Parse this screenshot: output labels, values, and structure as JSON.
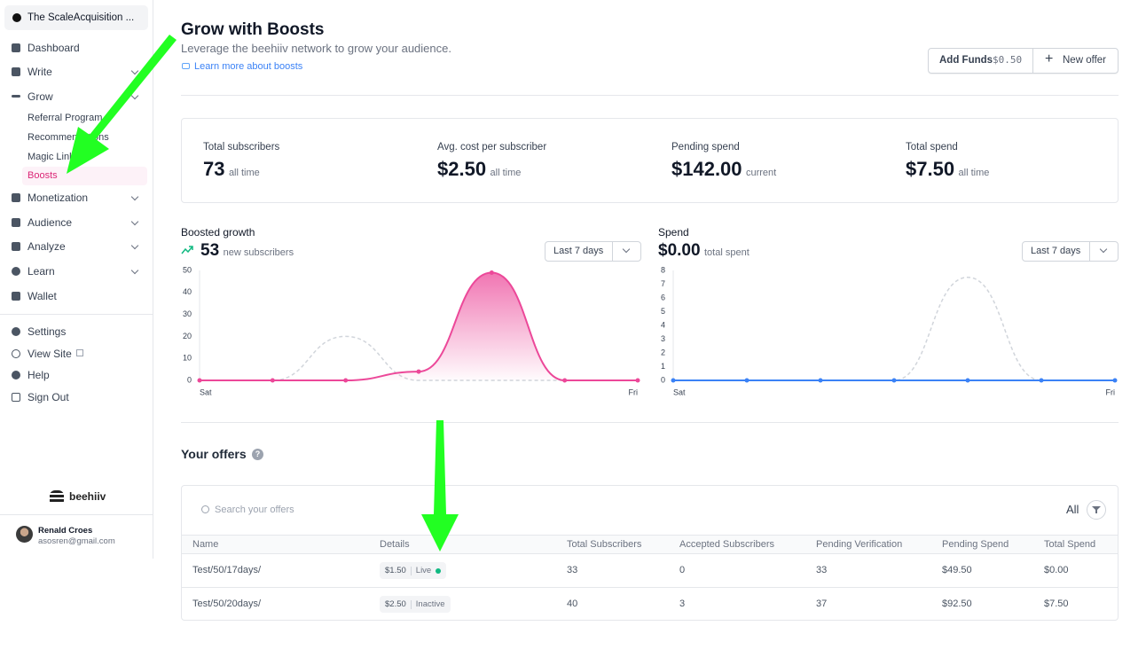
{
  "sidebar": {
    "workspace": "The ScaleAcquisition ...",
    "nav": [
      "Dashboard",
      "Write",
      "Grow"
    ],
    "grow_items": [
      "Referral Program",
      "Recommendations",
      "Magic Links",
      "Boosts"
    ],
    "nav2": [
      "Monetization",
      "Audience",
      "Analyze",
      "Learn",
      "Wallet"
    ],
    "footer_nav": [
      "Settings",
      "View Site",
      "Help",
      "Sign Out"
    ],
    "brand": "beehiiv",
    "user": {
      "name": "Renald Croes",
      "email": "asosren@gmail.com"
    }
  },
  "header": {
    "title": "Grow with Boosts",
    "subtitle": "Leverage the beehiiv network to grow your audience.",
    "link": "Learn more about boosts",
    "add_funds": "Add Funds",
    "funds": "$0.50",
    "new_offer": "New offer"
  },
  "stats": [
    {
      "label": "Total subscribers",
      "value": "73",
      "suffix": "all time"
    },
    {
      "label": "Avg. cost per subscriber",
      "value": "$2.50",
      "suffix": "all time"
    },
    {
      "label": "Pending spend",
      "value": "$142.00",
      "suffix": "current"
    },
    {
      "label": "Total spend",
      "value": "$7.50",
      "suffix": "all time"
    }
  ],
  "chart_data": [
    {
      "type": "line",
      "title": "Boosted growth",
      "headline_value": "53",
      "headline_suffix": "new subscribers",
      "range_select": "Last 7 days",
      "categories": [
        "Sat",
        null,
        null,
        null,
        null,
        null,
        "Fri"
      ],
      "ylim": [
        0,
        50
      ],
      "yticks": [
        0,
        10,
        20,
        30,
        40,
        50
      ],
      "series": [
        {
          "color": "#ec4899",
          "fill": true,
          "dots": true,
          "values": [
            0,
            0,
            0,
            4,
            49,
            0,
            0
          ]
        },
        {
          "color": "#d1d5db",
          "dashed": true,
          "values": [
            0,
            0,
            20,
            0,
            0,
            0,
            0
          ]
        }
      ]
    },
    {
      "type": "line",
      "title": "Spend",
      "headline_value": "$0.00",
      "headline_suffix": "total spent",
      "range_select": "Last 7 days",
      "categories": [
        "Sat",
        null,
        null,
        null,
        null,
        null,
        "Fri"
      ],
      "ylim": [
        0,
        8
      ],
      "yticks": [
        0,
        1,
        2,
        3,
        4,
        5,
        6,
        7,
        8
      ],
      "series": [
        {
          "color": "#3b82f6",
          "dots": true,
          "values": [
            0,
            0,
            0,
            0,
            0,
            0,
            0
          ]
        },
        {
          "color": "#d1d5db",
          "dashed": true,
          "values": [
            0,
            0,
            0,
            0,
            7.5,
            0,
            0
          ]
        }
      ]
    }
  ],
  "offers": {
    "title": "Your offers",
    "search": "Search your offers",
    "filter": "All",
    "columns": [
      "Name",
      "Details",
      "Total Subscribers",
      "Accepted Subscribers",
      "Pending Verification",
      "Pending Spend",
      "Total Spend"
    ],
    "rows": [
      {
        "name": "Test/50/17days/",
        "price": "$1.50",
        "status": "Live",
        "total": "33",
        "accepted": "0",
        "pending_verification": "33",
        "pending_spend": "$49.50",
        "total_spend": "$0.00"
      },
      {
        "name": "Test/50/20days/",
        "price": "$2.50",
        "status": "Inactive",
        "total": "40",
        "accepted": "3",
        "pending_verification": "37",
        "pending_spend": "$92.50",
        "total_spend": "$7.50"
      }
    ]
  }
}
